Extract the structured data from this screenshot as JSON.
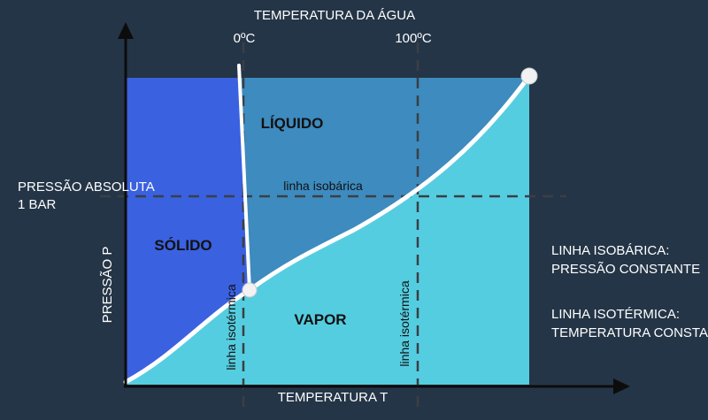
{
  "colors": {
    "background": "#243547",
    "solid": "#3a61e0",
    "liquid": "#3d8bbf",
    "vapor": "#55cde0",
    "curve": "#ffffff",
    "dashed": "#3a3f45"
  },
  "labels": {
    "top_axis_title": "TEMPERATURA DA ÁGUA",
    "temp_0": "0ºC",
    "temp_100": "100ºC",
    "pressure_line_1": "PRESSÃO ABSOLUTA",
    "pressure_line_2": "1 BAR",
    "y_axis": "PRESSÃO P",
    "x_axis": "TEMPERATURA T",
    "liquid": "LÍQUIDO",
    "solid": "SÓLIDO",
    "vapor": "VAPOR",
    "isobaric": "linha isobárica",
    "isothermal_left": "linha isotérmica",
    "isothermal_right": "linha isotérmica",
    "legend_isobaric_1": "LINHA ISOBÁRICA:",
    "legend_isobaric_2": "PRESSÃO CONSTANTE",
    "legend_isothermal_1": "LINHA ISOTÉRMICA:",
    "legend_isothermal_2": "TEMPERATURA CONSTANTE"
  }
}
